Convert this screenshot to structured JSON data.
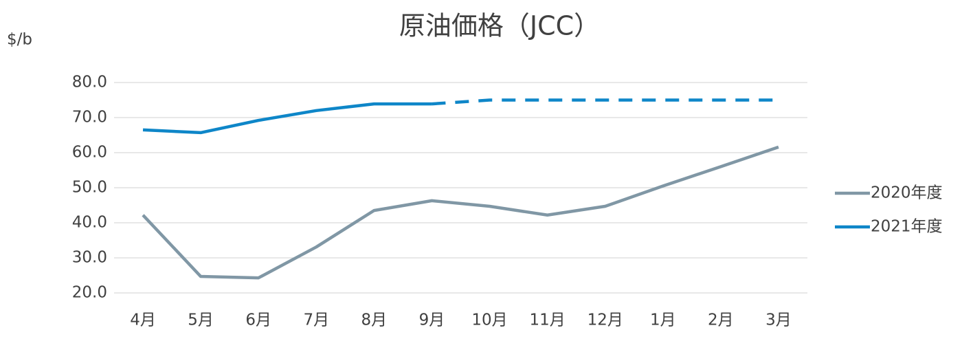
{
  "chart_data": {
    "type": "line",
    "title": "原油価格（JCC）",
    "y_label": "$/b",
    "categories": [
      "4月",
      "5月",
      "6月",
      "7月",
      "8月",
      "9月",
      "10月",
      "11月",
      "12月",
      "1月",
      "2月",
      "3月"
    ],
    "series": [
      {
        "name": "2020年度",
        "color": "#8097a5",
        "values": [
          42.2,
          24.7,
          24.3,
          33.1,
          43.5,
          46.3,
          44.7,
          42.2,
          44.7,
          50.5,
          56.0,
          61.6
        ]
      },
      {
        "name": "2021年度",
        "color": "#0e86c8",
        "values": [
          66.5,
          65.7,
          69.2,
          72.0,
          73.9,
          73.9,
          75.0,
          75.0,
          75.0,
          75.0,
          75.0,
          75.0
        ],
        "dashed_from": 5
      }
    ],
    "ylim": [
      20,
      80
    ],
    "yticks": [
      {
        "value": 20,
        "label": "20.0"
      },
      {
        "value": 30,
        "label": "30.0"
      },
      {
        "value": 40,
        "label": "40.0"
      },
      {
        "value": 50,
        "label": "50.0"
      },
      {
        "value": 60,
        "label": "60.0"
      },
      {
        "value": 70,
        "label": "70.0"
      },
      {
        "value": 80,
        "label": "80.0"
      }
    ],
    "grid": true,
    "legend": "right"
  }
}
